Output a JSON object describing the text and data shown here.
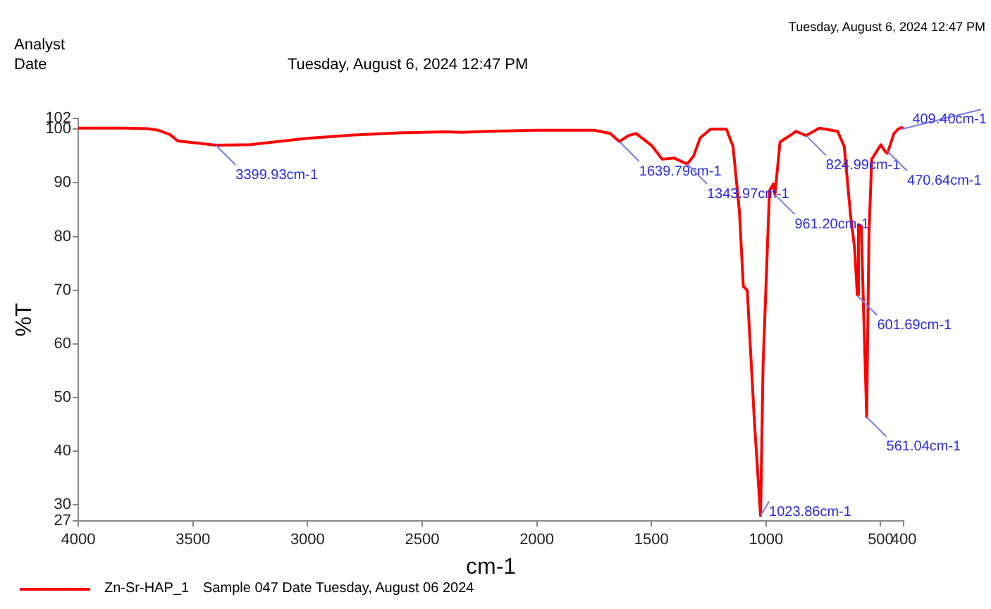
{
  "chart_data": {
    "type": "line",
    "title": "Tuesday, August 6, 2024 12:47 PM",
    "annotations": [
      "Analyst",
      "Date",
      "Tuesday, August 6, 2024 12:47 PM",
      "Sample 047 Date Tuesday, August 06 2024",
      {
        "text": "3399.93cm-1",
        "x": 3399.93,
        "y": 97
      },
      {
        "text": "1639.79cm-1",
        "x": 1639.79,
        "y": 97.7
      },
      {
        "text": "1343.97cm-1",
        "x": 1343.97,
        "y": 93.5
      },
      {
        "text": "1023.86cm-1",
        "x": 1023.86,
        "y": 28
      },
      {
        "text": "961.20cm-1",
        "x": 961.2,
        "y": 87.8
      },
      {
        "text": "824.99cm-1",
        "x": 824.99,
        "y": 98.8
      },
      {
        "text": "601.69cm-1",
        "x": 601.69,
        "y": 69
      },
      {
        "text": "561.04cm-1",
        "x": 561.04,
        "y": 46.4
      },
      {
        "text": "470.64cm-1",
        "x": 470.64,
        "y": 95.9
      },
      {
        "text": "409.40cm-1",
        "x": 409.4,
        "y": 100
      }
    ],
    "xlabel": "cm-1",
    "ylabel": "%T",
    "x": [
      4000,
      3800,
      3700,
      3650,
      3600,
      3566,
      3500,
      3400,
      3250,
      3150,
      3000,
      2800,
      2600,
      2400,
      2330,
      2200,
      2000,
      1750,
      1680,
      1640,
      1600,
      1567,
      1500,
      1453,
      1400,
      1343.97,
      1316,
      1287,
      1242,
      1173,
      1144,
      1116,
      1099,
      1082,
      1050,
      1023.86,
      1013,
      985,
      968,
      961.2,
      939,
      882,
      870,
      825,
      768,
      688,
      659,
      631,
      614,
      601.69,
      597,
      585,
      573,
      561.04,
      551,
      539,
      499,
      481,
      470.64,
      442,
      424,
      409.4,
      400
    ],
    "series": [
      {
        "name": "Zn-Sr-HAP_1",
        "color": "#ff0000",
        "values": [
          100.2,
          100.2,
          100.1,
          99.8,
          99,
          97.8,
          97.5,
          97,
          97.1,
          97.6,
          98.3,
          98.9,
          99.3,
          99.5,
          99.4,
          99.6,
          99.8,
          99.8,
          99.2,
          97.7,
          98.8,
          99.2,
          97,
          94.4,
          94.6,
          93.5,
          95,
          98.4,
          100,
          100,
          96.8,
          84.6,
          70.7,
          70,
          45,
          28,
          56,
          88.5,
          89.8,
          87.8,
          97.6,
          99.2,
          99.6,
          98.8,
          100.2,
          99.6,
          96.8,
          83.8,
          78,
          69.1,
          82.2,
          82,
          64.2,
          46.4,
          80.5,
          94.4,
          97.1,
          95.9,
          95.5,
          99.2,
          100,
          100.3,
          100.2
        ]
      }
    ],
    "xlim": [
      4000,
      400
    ],
    "ylim": [
      27,
      102
    ],
    "xticks": [
      4000,
      3500,
      3000,
      2500,
      2000,
      1500,
      1000,
      500,
      400
    ],
    "yticks": [
      27,
      30,
      40,
      50,
      60,
      70,
      80,
      90,
      100,
      102
    ],
    "grid": false,
    "legend": "bottom left",
    "marker": "none",
    "line_style": "solid"
  }
}
